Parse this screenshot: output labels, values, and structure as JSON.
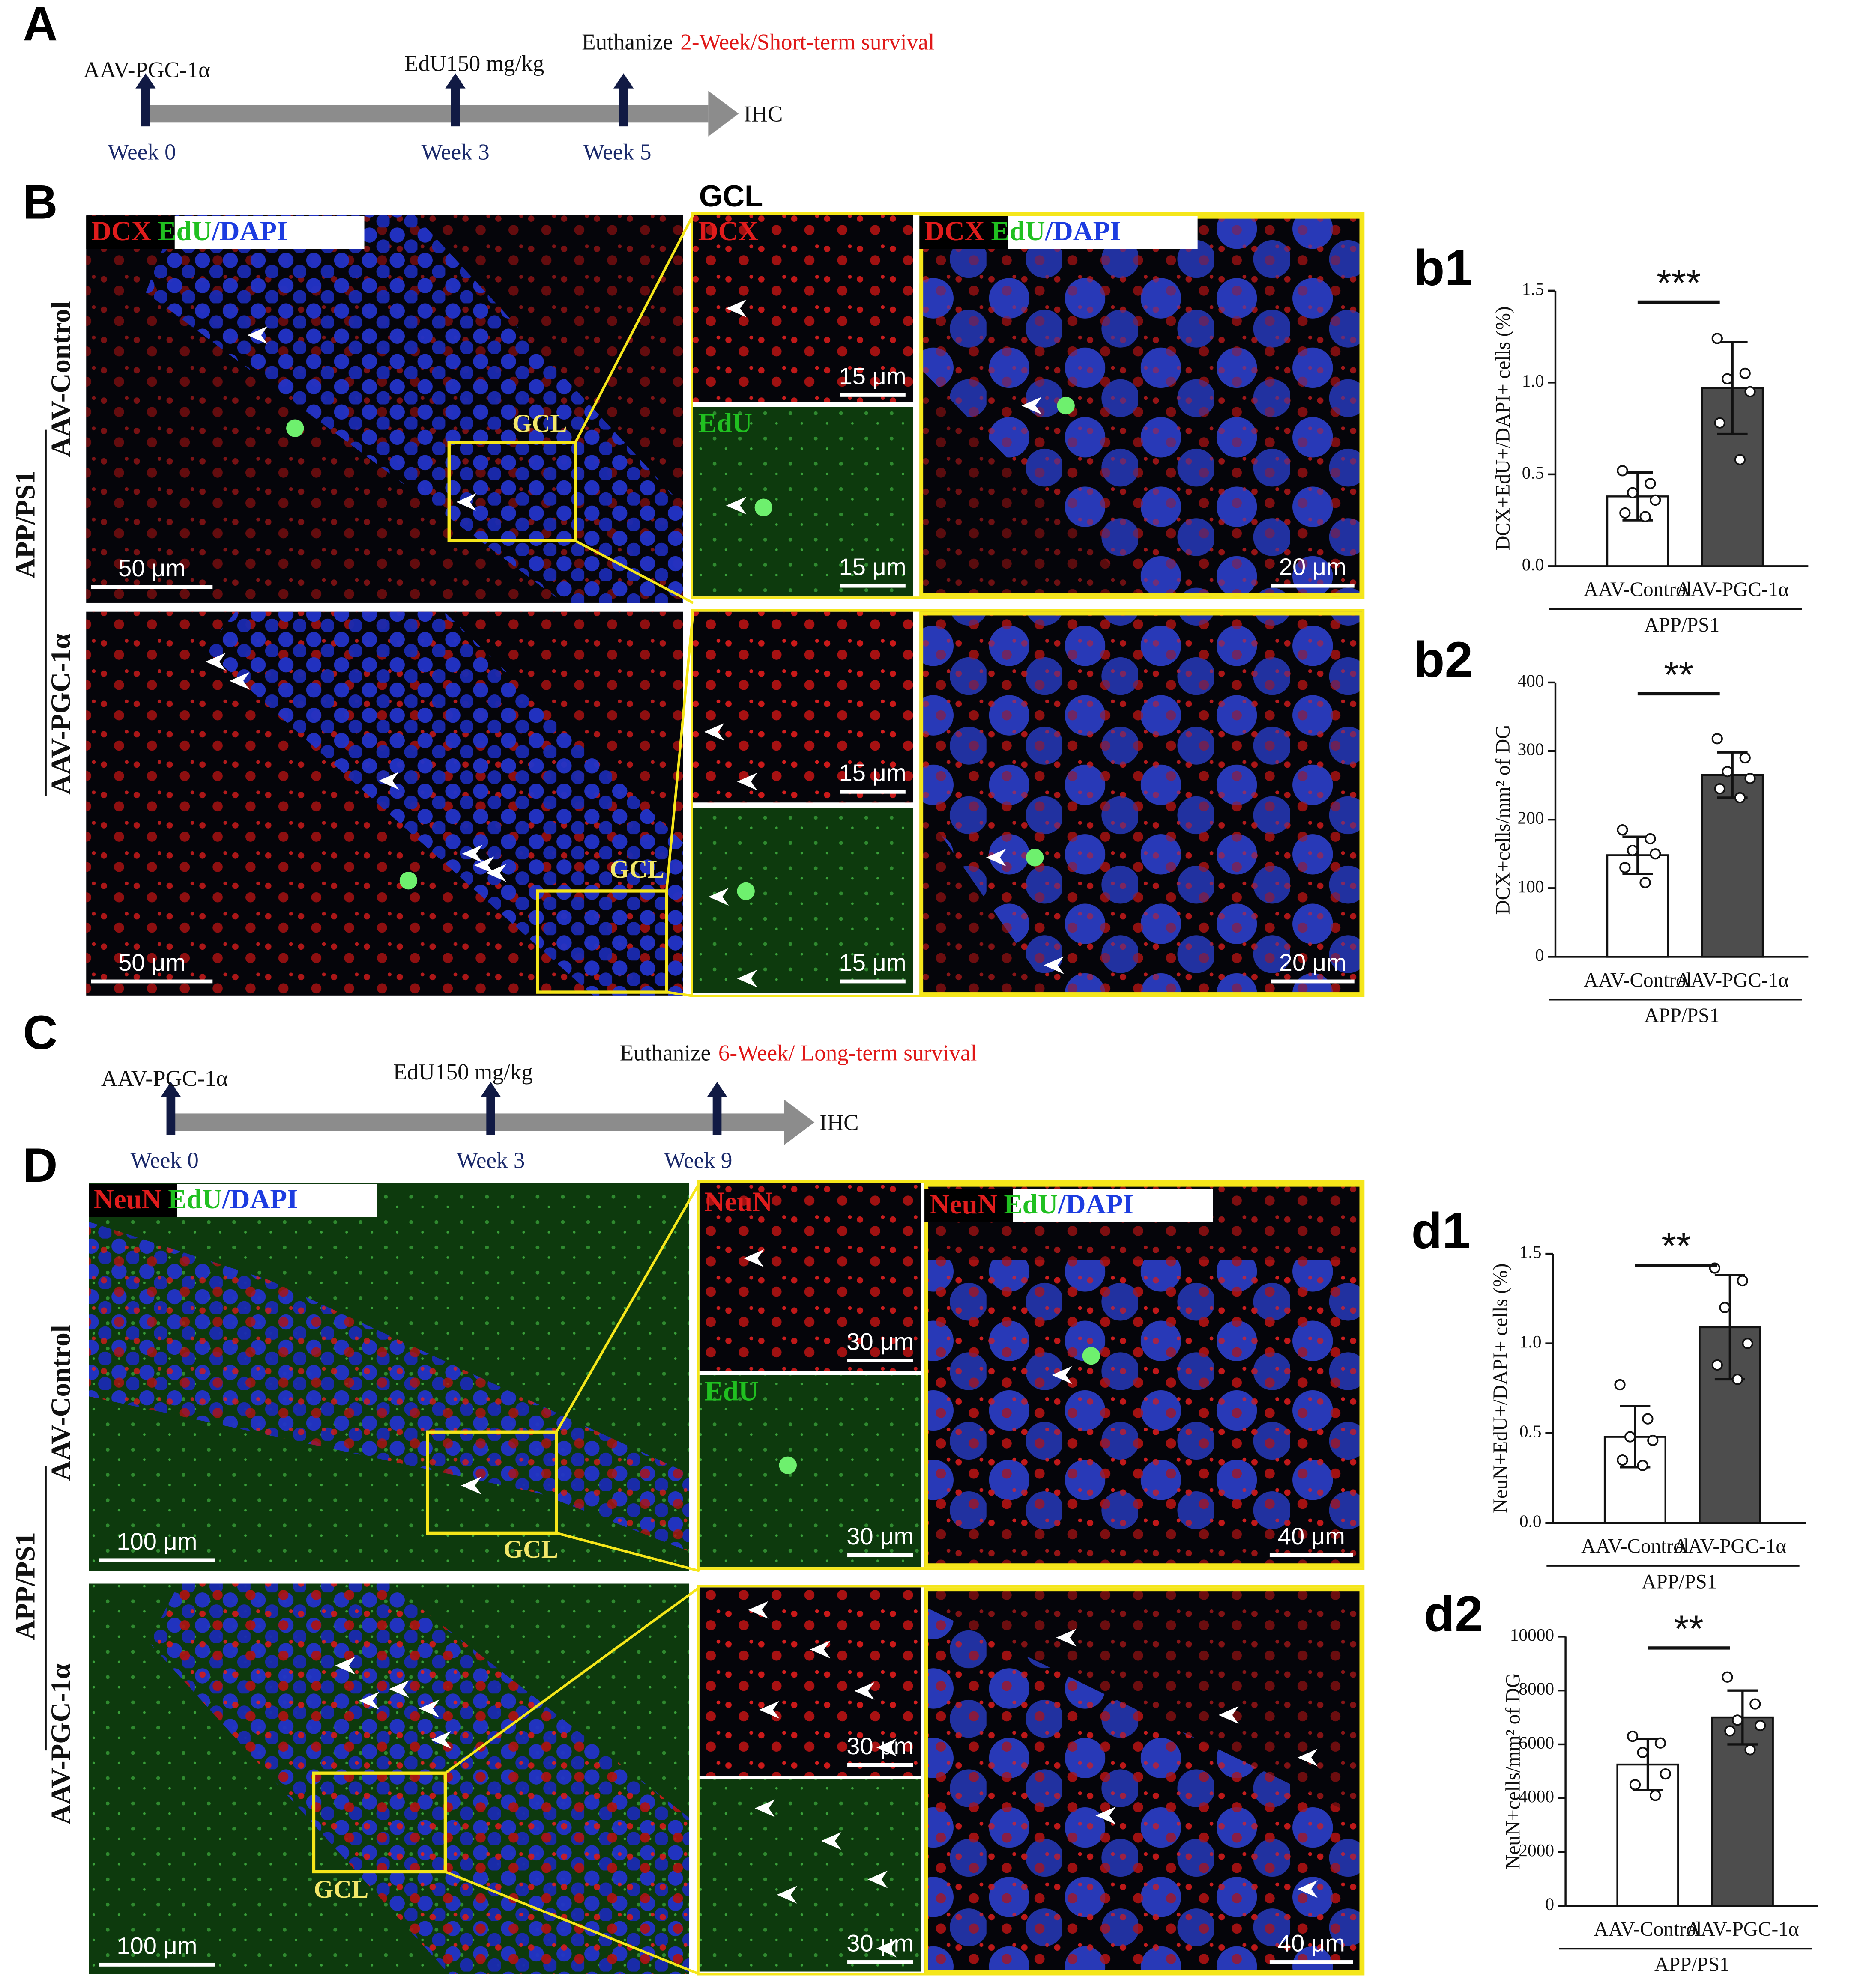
{
  "timeline_a": {
    "panel_label": "A",
    "injection": "AAV-PGC-1α",
    "edu": "EdU150 mg/kg",
    "euthanize": "Euthanize",
    "survival": "2-Week/Short-term survival",
    "endpoint": "IHC",
    "weeks": [
      "Week 0",
      "Week 3",
      "Week 5"
    ]
  },
  "images_b": {
    "panel_label": "B",
    "region_heading": "GCL",
    "stains": [
      "DCX",
      "EdU",
      "/DAPI"
    ],
    "rows": [
      "AAV-Control",
      "AAV-PGC-1α"
    ],
    "group": "APP/PS1",
    "region_label": "GCL",
    "scale_bars": [
      "50 μm",
      "15 μm",
      "20 μm"
    ]
  },
  "timeline_c": {
    "panel_label": "C",
    "injection": "AAV-PGC-1α",
    "edu": "EdU150 mg/kg",
    "euthanize": "Euthanize",
    "survival": "6-Week/ Long-term survival",
    "endpoint": "IHC",
    "weeks": [
      "Week 0",
      "Week 3",
      "Week 9"
    ]
  },
  "images_d": {
    "panel_label": "D",
    "stains": [
      "NeuN",
      "EdU",
      "/DAPI"
    ],
    "rows": [
      "AAV-Control",
      "AAV-PGC-1α"
    ],
    "group": "APP/PS1",
    "region_label": "GCL",
    "scale_bars": [
      "100 μm",
      "30 μm",
      "40 μm"
    ]
  },
  "chart_data": [
    {
      "type": "bar",
      "panel_label": "b1",
      "ylabel": "DCX+EdU+/DAPI+ cells (%)",
      "categories": [
        "AAV-Control",
        "AAV-PGC-1α"
      ],
      "group_label": "APP/PS1",
      "values": [
        0.38,
        0.97
      ],
      "errors": [
        0.13,
        0.25
      ],
      "colors": [
        "#ffffff",
        "#4d4d4d"
      ],
      "points": [
        [
          0.52,
          0.45,
          0.4,
          0.36,
          0.29,
          0.27
        ],
        [
          1.24,
          1.05,
          1.02,
          0.95,
          0.78,
          0.58
        ]
      ],
      "significance": "***",
      "ylim": [
        0,
        1.5
      ],
      "yticks": [
        {
          "value": 0,
          "label": "0.0"
        },
        0.5,
        {
          "value": 1,
          "label": "1.0"
        },
        1.5
      ]
    },
    {
      "type": "bar",
      "panel_label": "b2",
      "ylabel": "DCX+cells/mm² of DG",
      "categories": [
        "AAV-Control",
        "AAV-PGC-1α"
      ],
      "group_label": "APP/PS1",
      "values": [
        148,
        265
      ],
      "errors": [
        27,
        33
      ],
      "colors": [
        "#ffffff",
        "#4d4d4d"
      ],
      "points": [
        [
          185,
          172,
          155,
          150,
          130,
          108
        ],
        [
          318,
          290,
          270,
          260,
          245,
          232
        ]
      ],
      "significance": "**",
      "ylim": [
        0,
        400
      ],
      "yticks": [
        0,
        100,
        200,
        300,
        400
      ]
    },
    {
      "type": "bar",
      "panel_label": "d1",
      "ylabel": "NeuN+EdU+/DAPI+ cells (%)",
      "categories": [
        "AAV-Control",
        "AAV-PGC-1α"
      ],
      "group_label": "APP/PS1",
      "values": [
        0.48,
        1.09
      ],
      "errors": [
        0.17,
        0.29
      ],
      "colors": [
        "#ffffff",
        "#4d4d4d"
      ],
      "points": [
        [
          0.77,
          0.58,
          0.48,
          0.46,
          0.35,
          0.32
        ],
        [
          1.42,
          1.35,
          1.2,
          1.0,
          0.88,
          0.8
        ]
      ],
      "significance": "**",
      "ylim": [
        0,
        1.5
      ],
      "yticks": [
        {
          "value": 0,
          "label": "0.0"
        },
        0.5,
        {
          "value": 1,
          "label": "1.0"
        },
        1.5
      ]
    },
    {
      "type": "bar",
      "panel_label": "d2",
      "ylabel": "NeuN+cells/mm² of DG",
      "categories": [
        "AAV-Control",
        "AAV-PGC-1α"
      ],
      "group_label": "APP/PS1",
      "values": [
        5250,
        7000
      ],
      "errors": [
        950,
        1000
      ],
      "colors": [
        "#ffffff",
        "#4d4d4d"
      ],
      "points": [
        [
          6300,
          6050,
          5700,
          4900,
          4500,
          4100
        ],
        [
          8500,
          7500,
          6900,
          6700,
          6500,
          5800
        ]
      ],
      "significance": "**",
      "ylim": [
        0,
        10000
      ],
      "yticks": [
        0,
        2000,
        4000,
        6000,
        8000,
        10000
      ]
    }
  ]
}
